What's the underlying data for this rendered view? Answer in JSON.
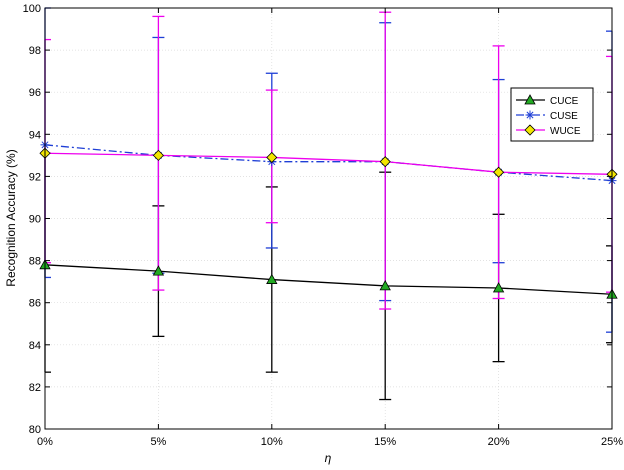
{
  "chart_data": {
    "type": "line",
    "title": "",
    "xlabel": "η",
    "ylabel": "Recognition Accuracy (%)",
    "categories": [
      "0%",
      "5%",
      "10%",
      "15%",
      "20%",
      "25%"
    ],
    "ylim": [
      80,
      100
    ],
    "yticks": [
      80,
      82,
      84,
      86,
      88,
      90,
      92,
      94,
      96,
      98,
      100
    ],
    "grid": true,
    "legend_position": "upper-right",
    "series": [
      {
        "name": "CUCE",
        "color": "#000000",
        "marker": "triangle",
        "marker_fill": "#22aa22",
        "line_style": "solid",
        "values": [
          87.8,
          87.5,
          87.1,
          86.8,
          86.7,
          86.4
        ],
        "err_low": [
          82.7,
          84.4,
          82.7,
          81.4,
          83.2,
          84.1
        ],
        "err_high": [
          93.1,
          90.6,
          91.5,
          92.2,
          90.2,
          88.7
        ]
      },
      {
        "name": "CUSE",
        "color": "#1f3fd6",
        "marker": "star",
        "marker_fill": "#1f3fd6",
        "line_style": "dashdot",
        "values": [
          93.5,
          93.0,
          92.7,
          92.7,
          92.2,
          91.8
        ],
        "err_low": [
          87.2,
          87.4,
          88.6,
          86.1,
          87.9,
          84.6
        ],
        "err_high": [
          100.0,
          98.6,
          96.9,
          99.3,
          96.6,
          98.9
        ]
      },
      {
        "name": "WUCE",
        "color": "#ee00ee",
        "marker": "diamond",
        "marker_fill": "#f2e600",
        "line_style": "solid",
        "values": [
          93.1,
          93.0,
          92.9,
          92.7,
          92.2,
          92.1
        ],
        "err_low": [
          87.9,
          86.6,
          89.8,
          85.7,
          86.2,
          86.5
        ],
        "err_high": [
          98.5,
          99.6,
          96.1,
          99.8,
          98.2,
          97.7
        ]
      }
    ]
  }
}
